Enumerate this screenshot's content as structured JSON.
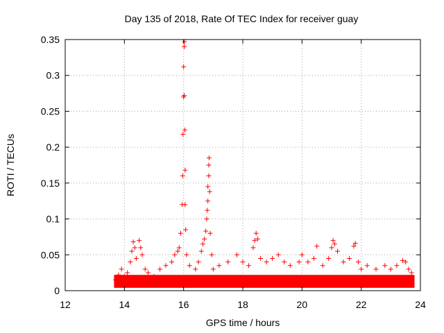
{
  "chart_data": {
    "type": "scatter",
    "title": "Day 135 of 2018, Rate Of TEC Index for receiver guay",
    "xlabel": "GPS time / hours",
    "ylabel": "ROTI / TECUs",
    "xlim": [
      12,
      24
    ],
    "ylim": [
      0,
      0.35
    ],
    "xticks": [
      12,
      14,
      16,
      18,
      20,
      22,
      24
    ],
    "xtick_labels": [
      "12",
      "14",
      "16",
      "18",
      "20",
      "22",
      "24"
    ],
    "yticks": [
      0,
      0.05,
      0.1,
      0.15,
      0.2,
      0.25,
      0.3,
      0.35
    ],
    "ytick_labels": [
      "0",
      "0.05",
      "0.1",
      "0.15",
      "0.2",
      "0.25",
      "0.3",
      "0.35"
    ],
    "grid": true,
    "marker": "+",
    "color": "#ff0000",
    "series": [
      {
        "name": "guay",
        "points": [
          [
            13.7,
            0.015
          ],
          [
            13.8,
            0.022
          ],
          [
            13.9,
            0.03
          ],
          [
            14.0,
            0.02
          ],
          [
            14.1,
            0.025
          ],
          [
            14.2,
            0.04
          ],
          [
            14.25,
            0.055
          ],
          [
            14.3,
            0.068
          ],
          [
            14.35,
            0.06
          ],
          [
            14.4,
            0.045
          ],
          [
            14.5,
            0.07
          ],
          [
            14.55,
            0.06
          ],
          [
            14.6,
            0.05
          ],
          [
            14.7,
            0.03
          ],
          [
            14.8,
            0.025
          ],
          [
            15.0,
            0.02
          ],
          [
            15.2,
            0.03
          ],
          [
            15.4,
            0.035
          ],
          [
            15.6,
            0.04
          ],
          [
            15.7,
            0.05
          ],
          [
            15.8,
            0.055
          ],
          [
            15.85,
            0.06
          ],
          [
            15.9,
            0.08
          ],
          [
            15.95,
            0.12
          ],
          [
            15.97,
            0.16
          ],
          [
            15.98,
            0.218
          ],
          [
            16.0,
            0.27
          ],
          [
            16.0,
            0.312
          ],
          [
            16.02,
            0.34
          ],
          [
            16.03,
            0.347
          ],
          [
            16.02,
            0.272
          ],
          [
            16.04,
            0.224
          ],
          [
            16.05,
            0.168
          ],
          [
            16.05,
            0.12
          ],
          [
            16.07,
            0.085
          ],
          [
            16.1,
            0.05
          ],
          [
            16.2,
            0.035
          ],
          [
            16.4,
            0.03
          ],
          [
            16.5,
            0.04
          ],
          [
            16.6,
            0.055
          ],
          [
            16.65,
            0.065
          ],
          [
            16.7,
            0.072
          ],
          [
            16.75,
            0.083
          ],
          [
            16.78,
            0.1
          ],
          [
            16.8,
            0.112
          ],
          [
            16.82,
            0.125
          ],
          [
            16.82,
            0.145
          ],
          [
            16.85,
            0.16
          ],
          [
            16.85,
            0.175
          ],
          [
            16.86,
            0.185
          ],
          [
            16.88,
            0.138
          ],
          [
            16.9,
            0.08
          ],
          [
            16.95,
            0.05
          ],
          [
            17.0,
            0.03
          ],
          [
            17.2,
            0.035
          ],
          [
            17.5,
            0.04
          ],
          [
            17.8,
            0.05
          ],
          [
            18.0,
            0.04
          ],
          [
            18.2,
            0.035
          ],
          [
            18.35,
            0.06
          ],
          [
            18.4,
            0.07
          ],
          [
            18.45,
            0.08
          ],
          [
            18.5,
            0.072
          ],
          [
            18.6,
            0.045
          ],
          [
            18.8,
            0.04
          ],
          [
            19.0,
            0.045
          ],
          [
            19.2,
            0.05
          ],
          [
            19.4,
            0.04
          ],
          [
            19.6,
            0.035
          ],
          [
            19.9,
            0.04
          ],
          [
            20.0,
            0.05
          ],
          [
            20.2,
            0.04
          ],
          [
            20.4,
            0.045
          ],
          [
            20.5,
            0.062
          ],
          [
            20.7,
            0.035
          ],
          [
            20.9,
            0.045
          ],
          [
            21.0,
            0.06
          ],
          [
            21.05,
            0.07
          ],
          [
            21.1,
            0.065
          ],
          [
            21.2,
            0.055
          ],
          [
            21.4,
            0.04
          ],
          [
            21.6,
            0.045
          ],
          [
            21.75,
            0.062
          ],
          [
            21.8,
            0.066
          ],
          [
            21.9,
            0.04
          ],
          [
            22.0,
            0.03
          ],
          [
            22.2,
            0.035
          ],
          [
            22.5,
            0.03
          ],
          [
            22.8,
            0.035
          ],
          [
            23.0,
            0.03
          ],
          [
            23.2,
            0.035
          ],
          [
            23.4,
            0.042
          ],
          [
            23.5,
            0.04
          ],
          [
            23.6,
            0.03
          ],
          [
            23.7,
            0.025
          ]
        ]
      }
    ]
  }
}
